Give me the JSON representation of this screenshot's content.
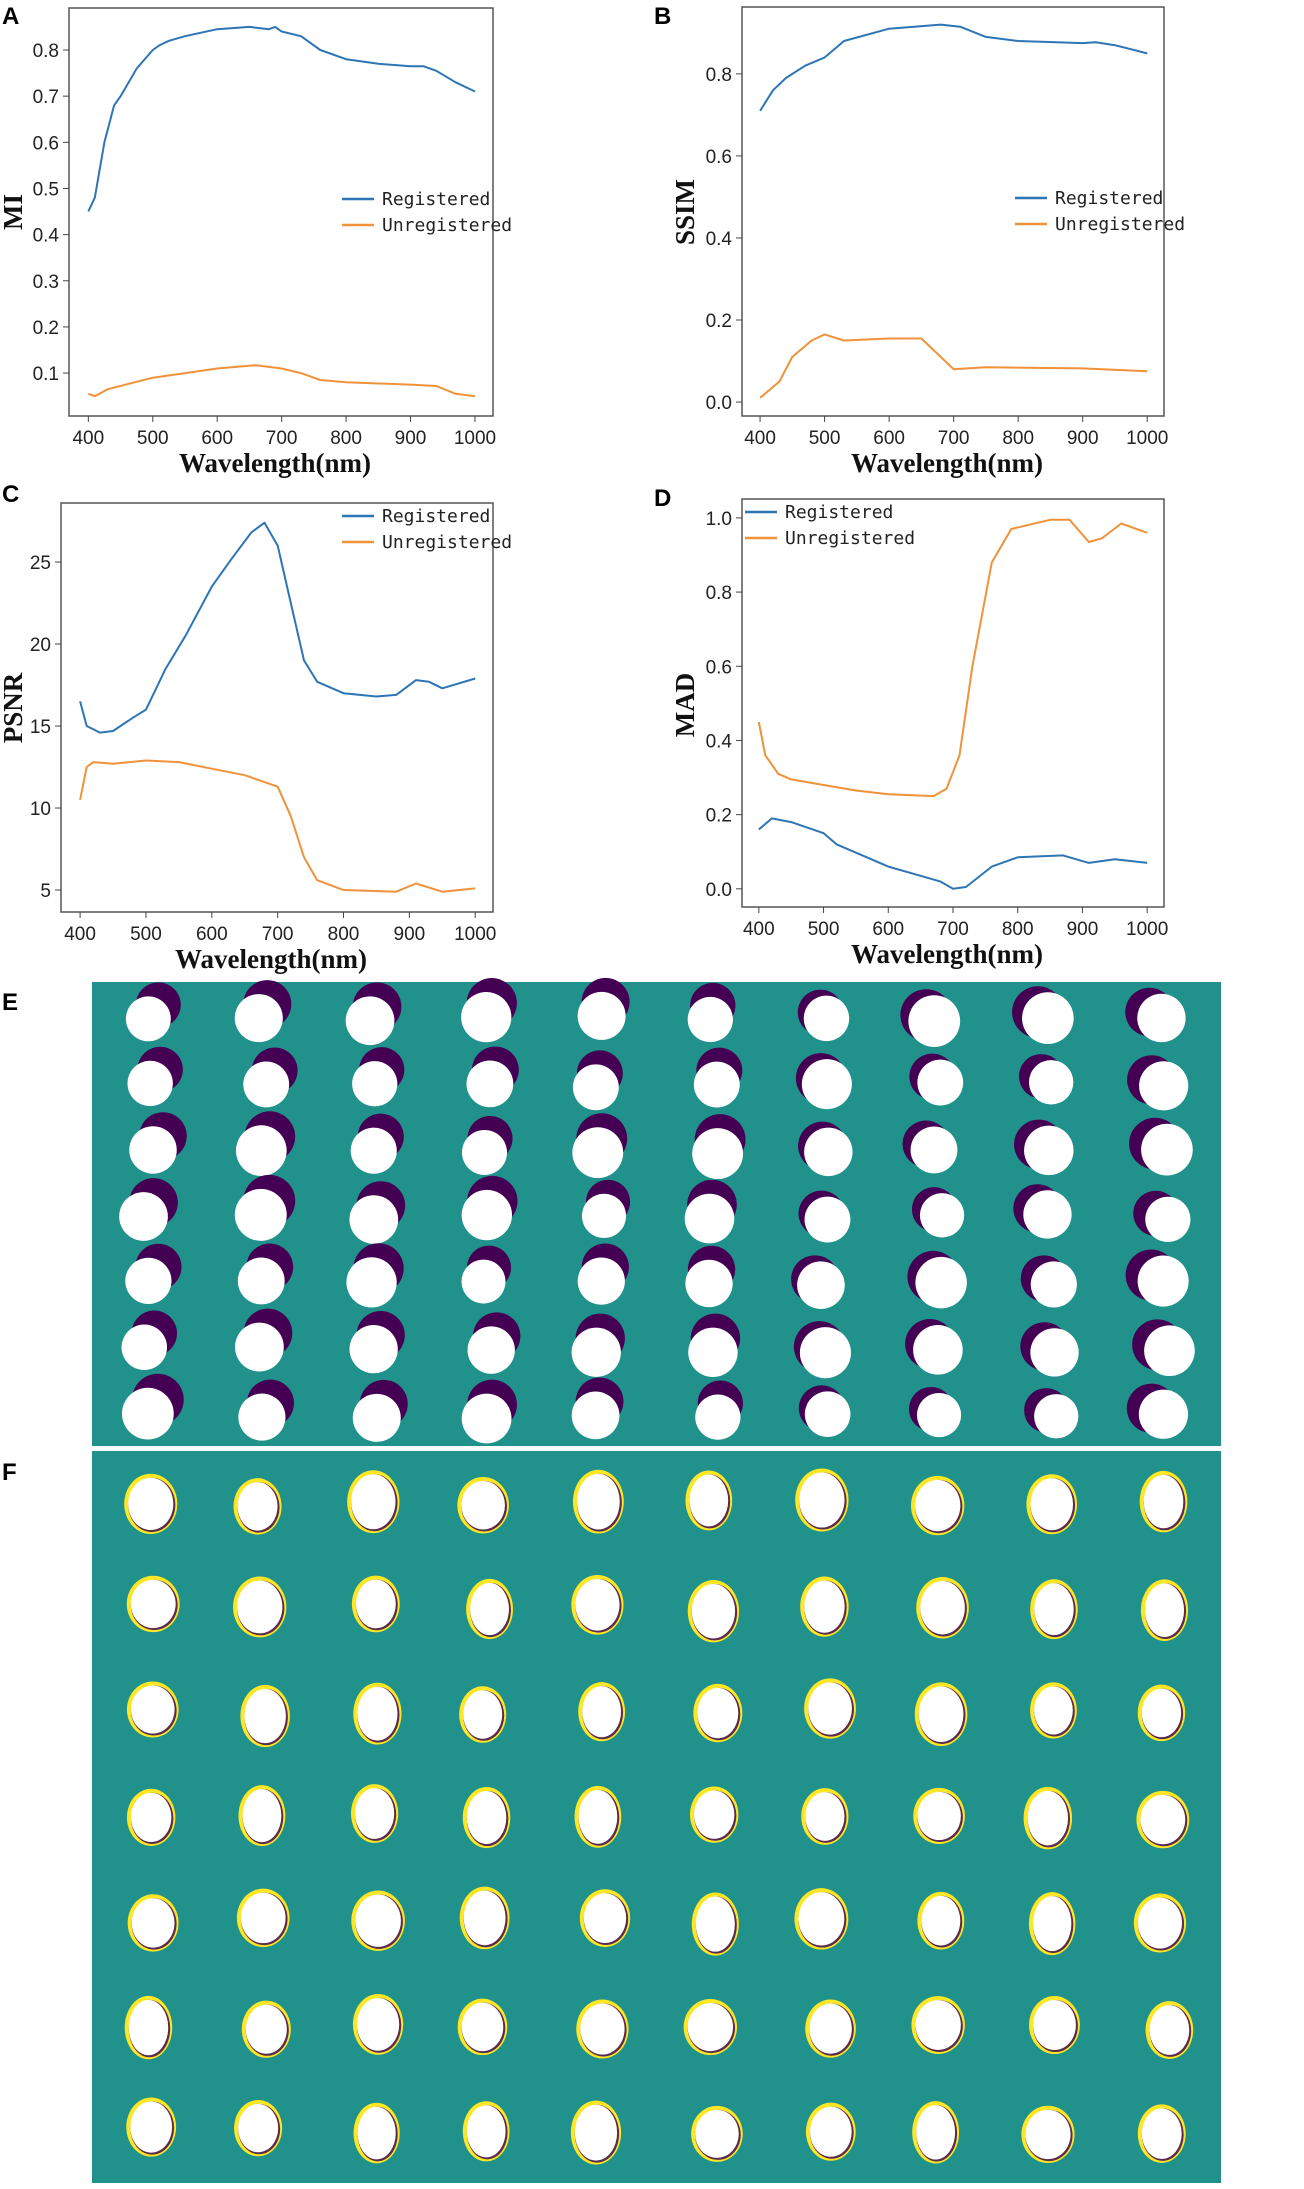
{
  "panel_labels": [
    "A",
    "B",
    "C",
    "D",
    "E",
    "F"
  ],
  "colors": {
    "registered": "#2e75b6",
    "unregistered": "#f0923a",
    "teal": "#21918c",
    "purple": "#440154",
    "yellow": "#fde725",
    "white": "#ffffff"
  },
  "chart_data": [
    {
      "type": "line",
      "panel": "A",
      "title": "",
      "xlabel": "Wavelength(nm)",
      "ylabel": "MI",
      "xlim": [
        370,
        1028
      ],
      "ylim": [
        0.007,
        0.891
      ],
      "xticks": [
        400,
        500,
        600,
        700,
        800,
        900,
        1000
      ],
      "yticks": [
        0.1,
        0.2,
        0.3,
        0.4,
        0.5,
        0.6,
        0.7,
        0.8
      ],
      "ytick_labels": [
        "0.1",
        "0.2",
        "0.3",
        "0.4",
        "0.5",
        "0.6",
        "0.7",
        "0.8"
      ],
      "legend": "center-right",
      "grid": false,
      "series": [
        {
          "name": "Registered",
          "x": [
            400,
            410,
            425,
            440,
            450,
            475,
            500,
            510,
            525,
            550,
            600,
            650,
            680,
            690,
            700,
            730,
            760,
            800,
            850,
            900,
            920,
            940,
            970,
            1000
          ],
          "values": [
            0.45,
            0.48,
            0.6,
            0.68,
            0.7,
            0.76,
            0.8,
            0.81,
            0.82,
            0.83,
            0.845,
            0.85,
            0.845,
            0.85,
            0.84,
            0.83,
            0.8,
            0.78,
            0.77,
            0.765,
            0.765,
            0.755,
            0.73,
            0.71
          ]
        },
        {
          "name": "Unregistered",
          "x": [
            400,
            410,
            430,
            500,
            600,
            660,
            700,
            730,
            760,
            800,
            900,
            940,
            970,
            1000
          ],
          "values": [
            0.055,
            0.05,
            0.065,
            0.09,
            0.11,
            0.117,
            0.11,
            0.1,
            0.085,
            0.08,
            0.075,
            0.072,
            0.055,
            0.05
          ]
        }
      ]
    },
    {
      "type": "line",
      "panel": "B",
      "title": "",
      "xlabel": "Wavelength(nm)",
      "ylabel": "SSIM",
      "xlim": [
        372,
        1026
      ],
      "ylim": [
        -0.034,
        0.963
      ],
      "xticks": [
        400,
        500,
        600,
        700,
        800,
        900,
        1000
      ],
      "yticks": [
        0.0,
        0.2,
        0.4,
        0.6,
        0.8
      ],
      "ytick_labels": [
        "0.0",
        "0.2",
        "0.4",
        "0.6",
        "0.8"
      ],
      "legend": "center-right",
      "grid": false,
      "series": [
        {
          "name": "Registered",
          "x": [
            400,
            420,
            440,
            470,
            500,
            530,
            600,
            680,
            710,
            750,
            800,
            900,
            920,
            950,
            1000
          ],
          "values": [
            0.71,
            0.76,
            0.79,
            0.82,
            0.84,
            0.88,
            0.91,
            0.92,
            0.915,
            0.89,
            0.88,
            0.875,
            0.877,
            0.87,
            0.85
          ]
        },
        {
          "name": "Unregistered",
          "x": [
            400,
            430,
            450,
            480,
            500,
            530,
            600,
            650,
            680,
            700,
            750,
            900,
            1000
          ],
          "values": [
            0.01,
            0.05,
            0.11,
            0.15,
            0.165,
            0.15,
            0.155,
            0.155,
            0.11,
            0.08,
            0.085,
            0.082,
            0.075
          ]
        }
      ]
    },
    {
      "type": "line",
      "panel": "C",
      "title": "",
      "xlabel": "Wavelength(nm)",
      "ylabel": "PSNR",
      "xlim": [
        371,
        1027
      ],
      "ylim": [
        3.66,
        28.6
      ],
      "xticks": [
        400,
        500,
        600,
        700,
        800,
        900,
        1000
      ],
      "yticks": [
        5,
        10,
        15,
        20,
        25
      ],
      "ytick_labels": [
        "5",
        "10",
        "15",
        "20",
        "25"
      ],
      "legend": "upper-right",
      "grid": false,
      "series": [
        {
          "name": "Registered",
          "x": [
            400,
            410,
            430,
            450,
            480,
            500,
            530,
            560,
            600,
            630,
            660,
            680,
            700,
            720,
            740,
            760,
            800,
            850,
            880,
            910,
            930,
            950,
            1000
          ],
          "values": [
            16.5,
            15.0,
            14.6,
            14.7,
            15.5,
            16.0,
            18.5,
            20.5,
            23.5,
            25.2,
            26.8,
            27.4,
            26.0,
            22.5,
            19.0,
            17.7,
            17.0,
            16.8,
            16.9,
            17.8,
            17.7,
            17.3,
            17.9
          ]
        },
        {
          "name": "Unregistered",
          "x": [
            400,
            410,
            420,
            450,
            500,
            550,
            600,
            650,
            700,
            720,
            740,
            760,
            800,
            880,
            910,
            950,
            1000
          ],
          "values": [
            10.5,
            12.5,
            12.8,
            12.7,
            12.9,
            12.8,
            12.4,
            12.0,
            11.3,
            9.5,
            7.0,
            5.6,
            5.0,
            4.9,
            5.4,
            4.9,
            5.1
          ]
        }
      ]
    },
    {
      "type": "line",
      "panel": "D",
      "title": "",
      "xlabel": "Wavelength(nm)",
      "ylabel": "MAD",
      "xlim": [
        374,
        1026
      ],
      "ylim": [
        -0.049,
        1.051
      ],
      "xticks": [
        400,
        500,
        600,
        700,
        800,
        900,
        1000
      ],
      "yticks": [
        0.0,
        0.2,
        0.4,
        0.6,
        0.8,
        1.0
      ],
      "ytick_labels": [
        "0.0",
        "0.2",
        "0.4",
        "0.6",
        "0.8",
        "1.0"
      ],
      "legend": "upper-left",
      "grid": false,
      "series": [
        {
          "name": "Registered",
          "x": [
            400,
            420,
            450,
            500,
            520,
            600,
            650,
            680,
            700,
            720,
            760,
            800,
            870,
            910,
            950,
            1000
          ],
          "values": [
            0.16,
            0.19,
            0.18,
            0.15,
            0.12,
            0.06,
            0.035,
            0.02,
            0.0,
            0.005,
            0.06,
            0.085,
            0.09,
            0.07,
            0.08,
            0.07
          ]
        },
        {
          "name": "Unregistered",
          "x": [
            400,
            410,
            430,
            450,
            500,
            550,
            600,
            670,
            690,
            710,
            730,
            760,
            790,
            850,
            880,
            910,
            930,
            960,
            1000
          ],
          "values": [
            0.45,
            0.36,
            0.31,
            0.295,
            0.28,
            0.265,
            0.255,
            0.25,
            0.27,
            0.36,
            0.6,
            0.88,
            0.97,
            0.995,
            0.995,
            0.935,
            0.945,
            0.985,
            0.96
          ]
        }
      ]
    }
  ],
  "image_grids": {
    "E": {
      "rows": 7,
      "cols": 10,
      "description_type": "overlay-masks"
    },
    "F": {
      "rows": 7,
      "cols": 10,
      "description_type": "registered-masks"
    }
  }
}
